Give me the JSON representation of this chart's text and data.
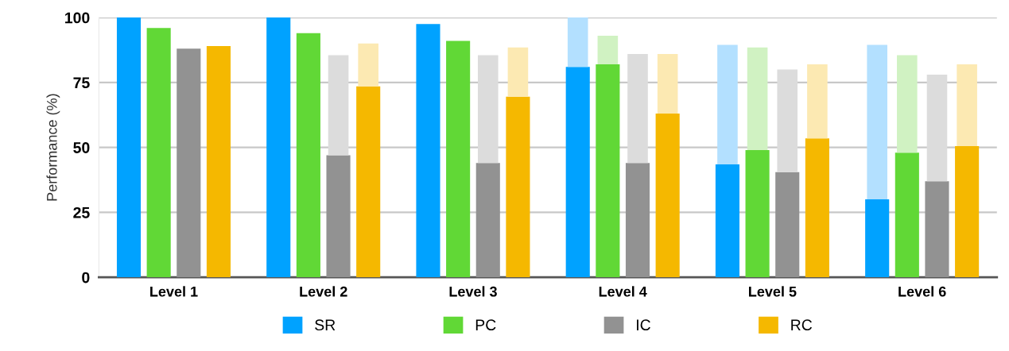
{
  "chart_data": {
    "type": "bar",
    "ylabel": "Performance (%)",
    "categories": [
      "Level 1",
      "Level 2",
      "Level 3",
      "Level 4",
      "Level 5",
      "Level 6"
    ],
    "series": [
      {
        "name": "SR",
        "color": "#00a2ff",
        "values": [
          100,
          100,
          97.5,
          81,
          43.5,
          30
        ]
      },
      {
        "name": "PC",
        "color": "#61d836",
        "values": [
          96,
          94,
          91,
          82,
          49,
          48
        ]
      },
      {
        "name": "IC",
        "color": "#929292",
        "values": [
          88,
          47,
          44,
          44,
          40.5,
          37
        ]
      },
      {
        "name": "RC",
        "color": "#f5b800",
        "values": [
          89,
          73.5,
          69.5,
          63,
          53.5,
          50.5
        ]
      },
      {
        "color": "#b3e0ff",
        "base": [
          null,
          null,
          null,
          81,
          43.5,
          30
        ],
        "values": [
          null,
          null,
          null,
          19,
          46,
          59.5
        ]
      },
      {
        "color": "#d0f2c2",
        "base": [
          null,
          null,
          null,
          82,
          49,
          48
        ],
        "values": [
          null,
          null,
          null,
          11,
          39.5,
          37.5
        ]
      },
      {
        "color": "#dcdcdc",
        "base": [
          null,
          47,
          44,
          44,
          40.5,
          37
        ],
        "values": [
          null,
          38.5,
          41.5,
          42,
          39.5,
          41
        ]
      },
      {
        "color": "#fce9b2",
        "base": [
          null,
          73.5,
          69.5,
          63,
          53.5,
          50.5
        ],
        "values": [
          null,
          16.5,
          19,
          23,
          28.5,
          31.5
        ]
      }
    ],
    "ylim": [
      0,
      100
    ],
    "yticks": [
      0,
      25,
      50,
      75,
      100
    ],
    "grid": "y",
    "legend": "bottom"
  }
}
